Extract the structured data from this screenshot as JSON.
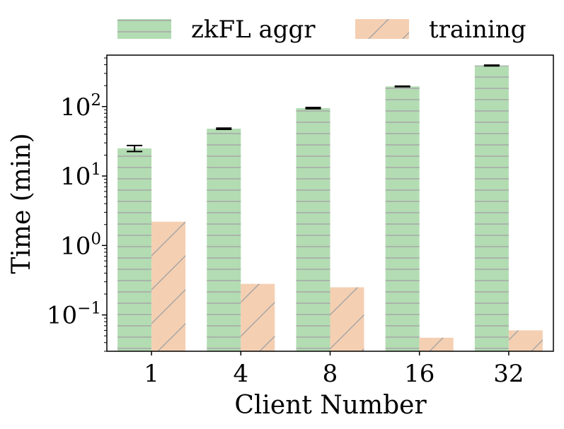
{
  "chart_data": {
    "type": "bar",
    "xlabel": "Client Number",
    "ylabel": "Time (min)",
    "yscale": "log",
    "ylim": [
      0.03,
      550
    ],
    "yticks": [
      {
        "value": 0.1,
        "base": "10",
        "exp": "−1"
      },
      {
        "value": 1,
        "base": "10",
        "exp": "0"
      },
      {
        "value": 10,
        "base": "10",
        "exp": "1"
      },
      {
        "value": 100,
        "base": "10",
        "exp": "2"
      }
    ],
    "categories": [
      "1",
      "4",
      "8",
      "16",
      "32"
    ],
    "series": [
      {
        "name": "zkFL aggr",
        "values": [
          25,
          48,
          95,
          195,
          390
        ],
        "error": [
          2.5,
          1,
          2,
          2,
          5
        ],
        "color": "#b3dcb3",
        "hatch": "horizontal",
        "hatch_color": "#a6a6a6"
      },
      {
        "name": "training",
        "values": [
          2.2,
          0.28,
          0.25,
          0.047,
          0.06
        ],
        "color": "#f5cfb2",
        "hatch": "diagonal",
        "hatch_color": "#a6a6a6"
      }
    ],
    "legend": "top",
    "grid": false
  }
}
